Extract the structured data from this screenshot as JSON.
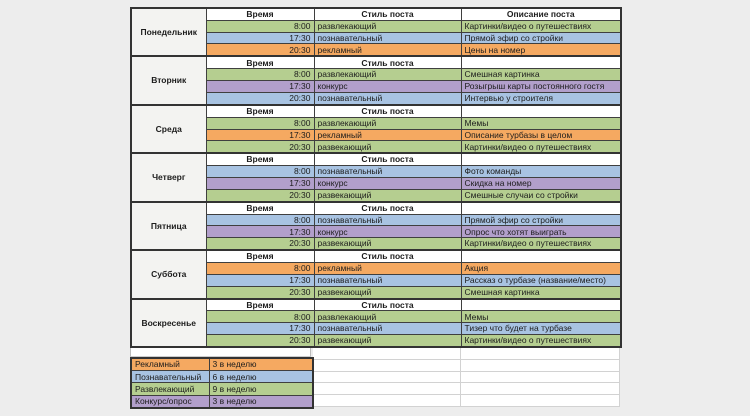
{
  "canvas": {
    "background": "#ededed",
    "cell_bg": "#ffffff",
    "day_cell_bg": "#f3f3f1",
    "grid_dark": "#3f3f3f",
    "grid_faint": "#d2d2d2",
    "text_color": "#1c1c1c"
  },
  "style_colors": {
    "entertaining": "#b5ce90",
    "educational": "#a8c3e2",
    "promo": "#f5a961",
    "contest": "#b29fcb"
  },
  "table": {
    "headers": {
      "time": "Время",
      "style": "Стиль поста",
      "description": "Описание поста"
    },
    "days": [
      {
        "name": "Понедельник",
        "rows": [
          {
            "time": "8:00",
            "style": "развлекающий",
            "style_key": "entertaining",
            "description": "Картинки/видео о путешествиях"
          },
          {
            "time": "17:30",
            "style": "познавательный",
            "style_key": "educational",
            "description": "Прямой эфир со стройки"
          },
          {
            "time": "20:30",
            "style": "рекламный",
            "style_key": "promo",
            "description": "Цены на номер"
          }
        ]
      },
      {
        "name": "Вторник",
        "rows": [
          {
            "time": "8:00",
            "style": "развлекающий",
            "style_key": "entertaining",
            "description": "Смешная картинка"
          },
          {
            "time": "17:30",
            "style": "конкурс",
            "style_key": "contest",
            "description": "Розыгрыш карты постоянного гостя"
          },
          {
            "time": "20:30",
            "style": "познавательный",
            "style_key": "educational",
            "description": "Интервью у строителя"
          }
        ]
      },
      {
        "name": "Среда",
        "rows": [
          {
            "time": "8:00",
            "style": "развлекающий",
            "style_key": "entertaining",
            "description": "Мемы"
          },
          {
            "time": "17:30",
            "style": "рекламный",
            "style_key": "promo",
            "description": "Описание турбазы в целом"
          },
          {
            "time": "20:30",
            "style": "развекающий",
            "style_key": "entertaining",
            "description": "Картинки/видео о путешествиях"
          }
        ]
      },
      {
        "name": "Четверг",
        "rows": [
          {
            "time": "8:00",
            "style": "познавательный",
            "style_key": "educational",
            "description": "Фото команды"
          },
          {
            "time": "17:30",
            "style": "конкурс",
            "style_key": "contest",
            "description": "Скидка на номер"
          },
          {
            "time": "20:30",
            "style": "развекающий",
            "style_key": "entertaining",
            "description": "Смешные случаи со стройки"
          }
        ]
      },
      {
        "name": "Пятница",
        "rows": [
          {
            "time": "8:00",
            "style": "познавательный",
            "style_key": "educational",
            "description": "Прямой эфир со стройки"
          },
          {
            "time": "17:30",
            "style": "конкурс",
            "style_key": "contest",
            "description": "Опрос что хотят выиграть"
          },
          {
            "time": "20:30",
            "style": "развекающий",
            "style_key": "entertaining",
            "description": "Картинки/видео о путешествиях"
          }
        ]
      },
      {
        "name": "Суббота",
        "rows": [
          {
            "time": "8:00",
            "style": "рекламный",
            "style_key": "promo",
            "description": "Акция"
          },
          {
            "time": "17:30",
            "style": "познавательный",
            "style_key": "educational",
            "description": "Рассказ о турбазе (название/место)"
          },
          {
            "time": "20:30",
            "style": "развекающий",
            "style_key": "entertaining",
            "description": "Смешная картинка"
          }
        ]
      },
      {
        "name": "Воскресенье",
        "rows": [
          {
            "time": "8:00",
            "style": "развлекающий",
            "style_key": "entertaining",
            "description": "Мемы"
          },
          {
            "time": "17:30",
            "style": "познавательный",
            "style_key": "educational",
            "description": "Тизер что будет на турбазе"
          },
          {
            "time": "20:30",
            "style": "развекающий",
            "style_key": "entertaining",
            "description": "Картинки/видео о путешествиях"
          }
        ]
      }
    ]
  },
  "legend": {
    "items": [
      {
        "label": "Рекламный",
        "value": "3 в неделю",
        "style_key": "promo"
      },
      {
        "label": "Познавательный",
        "value": "6 в неделю",
        "style_key": "educational"
      },
      {
        "label": "Развлекающий",
        "value": "9 в неделю",
        "style_key": "entertaining"
      },
      {
        "label": "Конкурс/опрос",
        "value": "3 в неделю",
        "style_key": "contest"
      }
    ]
  }
}
